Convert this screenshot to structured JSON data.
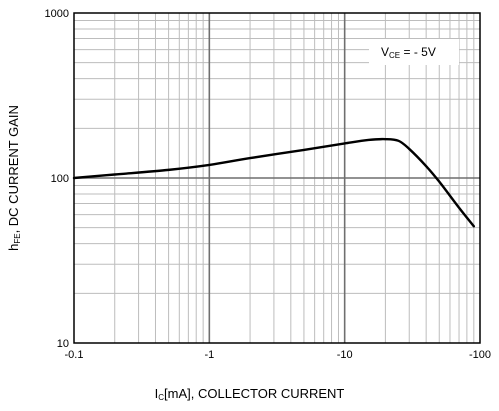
{
  "chart_data": {
    "type": "line",
    "title": "",
    "xlabel": {
      "prefix": "I",
      "sub": "C",
      "suffix": "[mA], COLLECTOR CURRENT"
    },
    "ylabel": {
      "prefix": "h",
      "sub": "FE",
      "suffix": ", DC CURRENT GAIN"
    },
    "xscale": "log",
    "yscale": "log",
    "xlim": [
      0.1,
      100
    ],
    "ylim": [
      10,
      1000
    ],
    "x_ticks": [
      "-0.1",
      "-1",
      "-10",
      "-100"
    ],
    "y_ticks": [
      "10",
      "100",
      "1000"
    ],
    "grid": true,
    "annotation": {
      "prefix": "V",
      "sub": "CE",
      "suffix": " = - 5V"
    },
    "series": [
      {
        "x": [
          0.1,
          0.2,
          0.5,
          1,
          2,
          5,
          10,
          15,
          20,
          25,
          30,
          40,
          50,
          70,
          90
        ],
        "y": [
          100,
          105,
          112,
          120,
          132,
          148,
          162,
          170,
          172,
          168,
          150,
          118,
          95,
          66,
          51
        ]
      }
    ]
  }
}
